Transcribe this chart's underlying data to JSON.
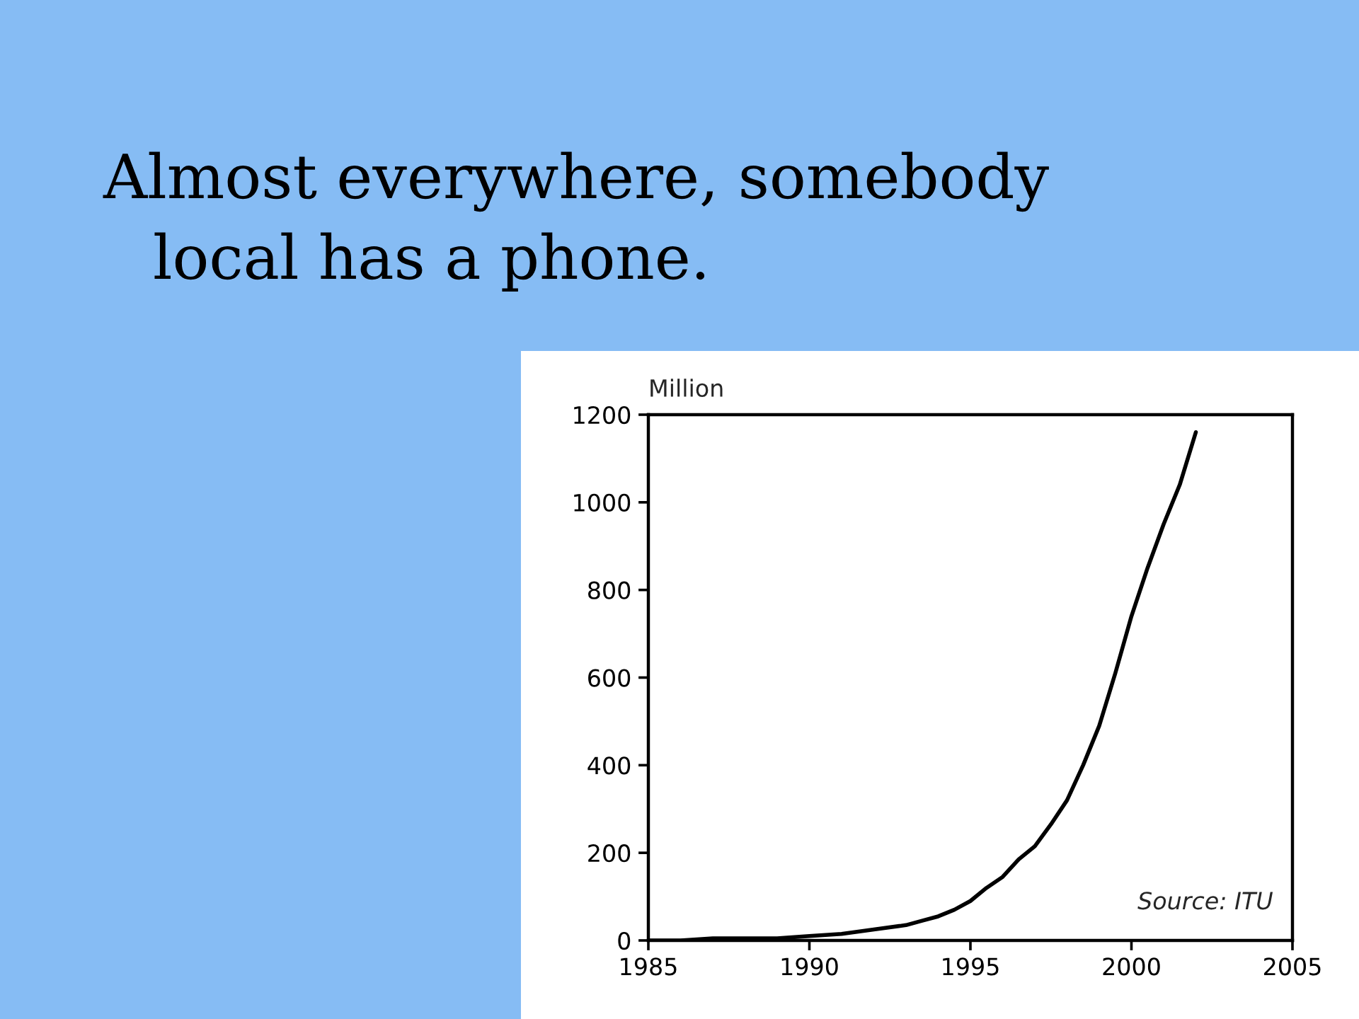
{
  "chart_data": {
    "type": "line",
    "title": "Almost everywhere, somebody\nlocal has a phone.",
    "ylabel": "Million",
    "annotations": [
      "Source: ITU"
    ],
    "x": [
      1985,
      1986,
      1987,
      1988,
      1989,
      1990,
      1991,
      1992,
      1993,
      1993.5,
      1994,
      1994.5,
      1995,
      1995.5,
      1996,
      1996.5,
      1997,
      1997.5,
      1998,
      1998.5,
      1999,
      1999.5,
      2000,
      2000.5,
      2001,
      2001.5,
      2002
    ],
    "series": [
      {
        "color": "#000000",
        "values": [
          0,
          0,
          5,
          5,
          5,
          10,
          15,
          25,
          35,
          45,
          55,
          70,
          90,
          120,
          145,
          185,
          215,
          265,
          320,
          400,
          490,
          610,
          740,
          850,
          950,
          1040,
          1160
        ]
      }
    ],
    "xlim": [
      1985,
      2005
    ],
    "xticks": [
      1985,
      1990,
      1995,
      2000,
      2005
    ],
    "ylim": [
      0,
      1200
    ],
    "yticks": [
      0,
      200,
      400,
      600,
      800,
      1000,
      1200
    ],
    "grid": false,
    "marker": "none",
    "line_style": "solid"
  }
}
